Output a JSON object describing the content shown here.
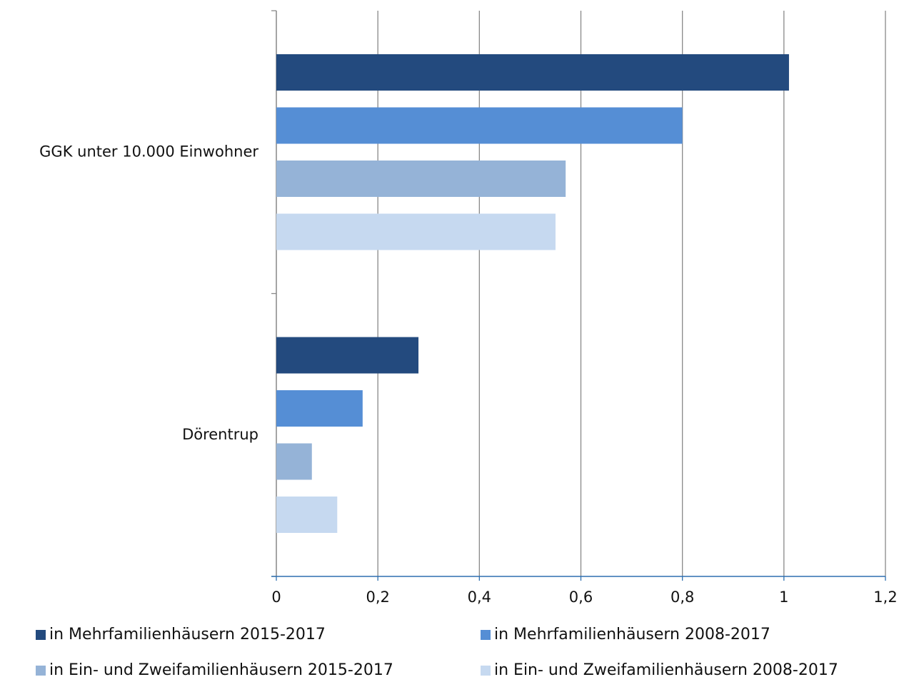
{
  "chart_data": {
    "type": "barh",
    "categories": [
      "GGK unter 10.000 Einwohner",
      "Dörentrup"
    ],
    "series": [
      {
        "name": "in Mehrfamilienhäusern 2015-2017",
        "color": "#234a7e",
        "values": [
          1.01,
          0.28
        ]
      },
      {
        "name": "in Mehrfamilienhäusern 2008-2017",
        "color": "#558ed5",
        "values": [
          0.8,
          0.17
        ]
      },
      {
        "name": "in Ein- und Zweifamilienhäusern 2015-2017",
        "color": "#95b3d7",
        "values": [
          0.57,
          0.07
        ]
      },
      {
        "name": "in Ein- und Zweifamilienhäusern 2008-2017",
        "color": "#c6d9f0",
        "values": [
          0.55,
          0.12
        ]
      }
    ],
    "xlim": [
      0,
      1.2
    ],
    "xticks": [
      0,
      {
        "value": 0.2,
        "label": "0,2"
      },
      {
        "value": 0.4,
        "label": "0,4"
      },
      {
        "value": 0.6,
        "label": "0,6"
      },
      {
        "value": 0.8,
        "label": "0,8"
      },
      1,
      {
        "value": 1.2,
        "label": "1,2"
      }
    ],
    "grid": true
  }
}
